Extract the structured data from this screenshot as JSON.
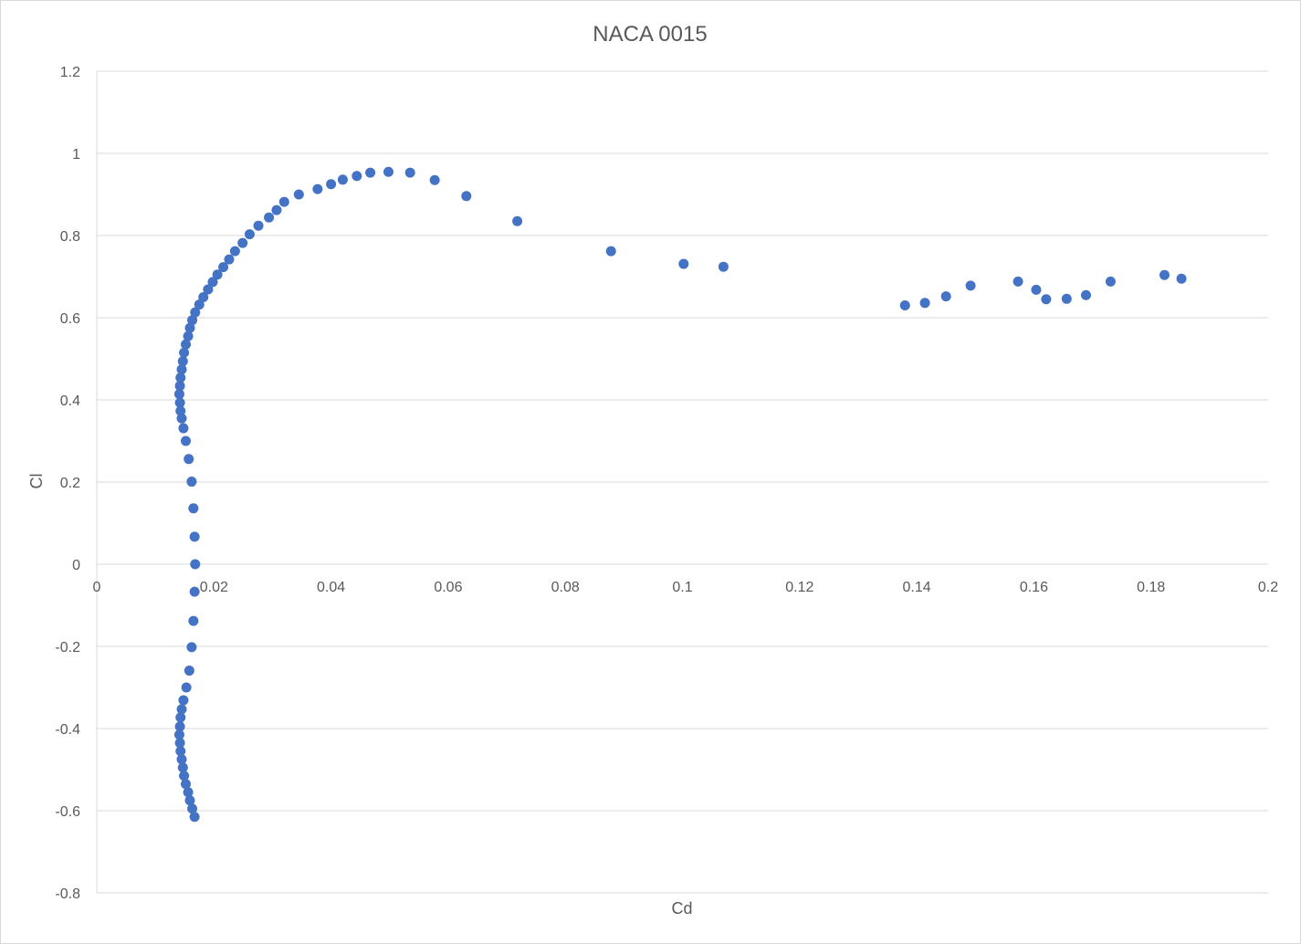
{
  "chart_data": {
    "type": "scatter",
    "title": "NACA 0015",
    "xlabel": "Cd",
    "ylabel": "Cl",
    "xlim": [
      0,
      0.2
    ],
    "ylim": [
      -0.8,
      1.2
    ],
    "x_ticks": [
      "0",
      "0.02",
      "0.04",
      "0.06",
      "0.08",
      "0.1",
      "0.12",
      "0.14",
      "0.16",
      "0.18",
      "0.2"
    ],
    "y_ticks": [
      "1.2",
      "1",
      "0.8",
      "0.6",
      "0.4",
      "0.2",
      "0",
      "-0.2",
      "-0.4",
      "-0.6",
      "-0.8"
    ],
    "grid": "horizontal",
    "legend": "none",
    "marker_color": "#4472c4",
    "series": [
      {
        "points": [
          [
            0.0167,
            -0.615
          ],
          [
            0.0163,
            -0.595
          ],
          [
            0.0159,
            -0.575
          ],
          [
            0.0156,
            -0.555
          ],
          [
            0.0152,
            -0.535
          ],
          [
            0.0149,
            -0.515
          ],
          [
            0.0147,
            -0.495
          ],
          [
            0.0145,
            -0.475
          ],
          [
            0.0143,
            -0.455
          ],
          [
            0.0142,
            -0.435
          ],
          [
            0.0141,
            -0.415
          ],
          [
            0.0142,
            -0.395
          ],
          [
            0.0143,
            -0.373
          ],
          [
            0.0145,
            -0.353
          ],
          [
            0.0148,
            -0.331
          ],
          [
            0.0153,
            -0.3
          ],
          [
            0.0158,
            -0.259
          ],
          [
            0.0162,
            -0.202
          ],
          [
            0.0165,
            -0.138
          ],
          [
            0.0167,
            -0.067
          ],
          [
            0.0168,
            0.0
          ],
          [
            0.0167,
            0.067
          ],
          [
            0.0165,
            0.136
          ],
          [
            0.0162,
            0.201
          ],
          [
            0.0157,
            0.256
          ],
          [
            0.0152,
            0.3
          ],
          [
            0.0148,
            0.331
          ],
          [
            0.0145,
            0.355
          ],
          [
            0.0143,
            0.373
          ],
          [
            0.0142,
            0.393
          ],
          [
            0.0141,
            0.414
          ],
          [
            0.0142,
            0.434
          ],
          [
            0.0143,
            0.454
          ],
          [
            0.0145,
            0.474
          ],
          [
            0.0147,
            0.494
          ],
          [
            0.0149,
            0.515
          ],
          [
            0.0152,
            0.535
          ],
          [
            0.0156,
            0.555
          ],
          [
            0.0159,
            0.575
          ],
          [
            0.0163,
            0.594
          ],
          [
            0.0168,
            0.613
          ],
          [
            0.0175,
            0.632
          ],
          [
            0.0182,
            0.65
          ],
          [
            0.019,
            0.669
          ],
          [
            0.0198,
            0.687
          ],
          [
            0.0206,
            0.705
          ],
          [
            0.0216,
            0.723
          ],
          [
            0.0226,
            0.742
          ],
          [
            0.0236,
            0.762
          ],
          [
            0.0249,
            0.782
          ],
          [
            0.0261,
            0.803
          ],
          [
            0.0276,
            0.824
          ],
          [
            0.0294,
            0.844
          ],
          [
            0.0307,
            0.862
          ],
          [
            0.032,
            0.882
          ],
          [
            0.0345,
            0.9
          ],
          [
            0.0377,
            0.913
          ],
          [
            0.04,
            0.925
          ],
          [
            0.042,
            0.936
          ],
          [
            0.0444,
            0.945
          ],
          [
            0.0467,
            0.953
          ],
          [
            0.0498,
            0.955
          ],
          [
            0.0535,
            0.953
          ],
          [
            0.0577,
            0.935
          ],
          [
            0.0631,
            0.896
          ],
          [
            0.0718,
            0.835
          ],
          [
            0.0878,
            0.762
          ],
          [
            0.1002,
            0.731
          ],
          [
            0.107,
            0.724
          ],
          [
            0.138,
            0.63
          ],
          [
            0.1414,
            0.636
          ],
          [
            0.145,
            0.652
          ],
          [
            0.1492,
            0.678
          ],
          [
            0.1573,
            0.688
          ],
          [
            0.1604,
            0.668
          ],
          [
            0.1621,
            0.645
          ],
          [
            0.1656,
            0.646
          ],
          [
            0.1689,
            0.655
          ],
          [
            0.1731,
            0.688
          ],
          [
            0.1823,
            0.704
          ],
          [
            0.1852,
            0.695
          ]
        ]
      }
    ]
  }
}
